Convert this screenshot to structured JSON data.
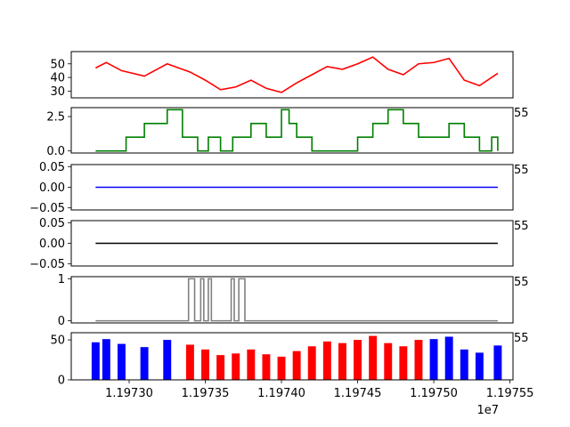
{
  "chart_data": [
    {
      "type": "line",
      "color": "#ff0000",
      "ylim": [
        25,
        59
      ],
      "yticks": [
        30,
        40,
        50
      ],
      "ytick_labels": [
        "30",
        "40",
        "50"
      ],
      "xlim": [
        11972620,
        11975520
      ],
      "x_offset_label": "",
      "series": [
        {
          "color": "#ff0000",
          "x": [
            11972780,
            11972850,
            11972950,
            11973100,
            11973250,
            11973400,
            11973500,
            11973600,
            11973700,
            11973800,
            11973900,
            11974000,
            11974100,
            11974200,
            11974300,
            11974400,
            11974500,
            11974600,
            11974700,
            11974800,
            11974900,
            11975000,
            11975100,
            11975200,
            11975300,
            11975420
          ],
          "values": [
            47,
            51,
            45,
            41,
            50,
            44,
            38,
            31,
            33,
            38,
            32,
            29,
            36,
            42,
            48,
            46,
            50,
            55,
            46,
            42,
            50,
            51,
            54,
            38,
            34,
            43
          ]
        }
      ]
    },
    {
      "type": "line",
      "color": "#008000",
      "ylim": [
        -0.15,
        3.15
      ],
      "yticks": [
        0.0,
        2.5
      ],
      "ytick_labels": [
        "0.0",
        "2.5"
      ],
      "xlim": [
        11972620,
        11975520
      ],
      "x_offset_label": "55",
      "series": [
        {
          "color": "#008000",
          "step": true,
          "x": [
            11972780,
            11972980,
            11973100,
            11973250,
            11973350,
            11973450,
            11973520,
            11973600,
            11973680,
            11973800,
            11973900,
            11974000,
            11974050,
            11974100,
            11974200,
            11974400,
            11974500,
            11974600,
            11974700,
            11974800,
            11974900,
            11975000,
            11975100,
            11975200,
            11975300,
            11975380,
            11975420
          ],
          "values": [
            0,
            1,
            2,
            3,
            1,
            0,
            1,
            0,
            1,
            2,
            1,
            3,
            2,
            1,
            0,
            0,
            1,
            2,
            3,
            2,
            1,
            1,
            2,
            1,
            0,
            1,
            0
          ]
        }
      ]
    },
    {
      "type": "line",
      "color": "#0000ff",
      "ylim": [
        -0.055,
        0.055
      ],
      "yticks": [
        -0.05,
        0.0,
        0.05
      ],
      "ytick_labels": [
        "−0.05",
        "0.00",
        "0.05"
      ],
      "xlim": [
        11972620,
        11975520
      ],
      "x_offset_label": "55",
      "series": [
        {
          "color": "#0000ff",
          "x": [
            11972780,
            11975420
          ],
          "values": [
            0,
            0
          ]
        }
      ]
    },
    {
      "type": "line",
      "color": "#000000",
      "ylim": [
        -0.055,
        0.055
      ],
      "yticks": [
        -0.05,
        0.0,
        0.05
      ],
      "ytick_labels": [
        "−0.05",
        "0.00",
        "0.05"
      ],
      "xlim": [
        11972620,
        11975520
      ],
      "x_offset_label": "55",
      "series": [
        {
          "color": "#000000",
          "x": [
            11972780,
            11975420
          ],
          "values": [
            0,
            0
          ]
        }
      ]
    },
    {
      "type": "line",
      "color": "#808080",
      "ylim": [
        -0.05,
        1.05
      ],
      "yticks": [
        0,
        1
      ],
      "ytick_labels": [
        "0",
        "1"
      ],
      "xlim": [
        11972620,
        11975520
      ],
      "x_offset_label": "55",
      "series": [
        {
          "color": "#808080",
          "step": true,
          "x": [
            11972780,
            11973390,
            11973430,
            11973470,
            11973490,
            11973520,
            11973540,
            11973600,
            11973670,
            11973690,
            11973720,
            11973760,
            11973800,
            11975420
          ],
          "values": [
            0,
            1,
            0,
            1,
            0,
            1,
            0,
            0,
            1,
            0,
            1,
            0,
            0,
            0
          ]
        }
      ]
    },
    {
      "type": "bar",
      "ylim": [
        0,
        59
      ],
      "yticks": [
        0,
        50
      ],
      "ytick_labels": [
        "0",
        "50"
      ],
      "xlim": [
        11972620,
        11975520
      ],
      "x_offset_label": "55",
      "xticks": [
        11973000,
        11973500,
        11974000,
        11974500,
        11975000,
        11975500
      ],
      "xtick_labels": [
        "1.19730",
        "1.19735",
        "1.19740",
        "1.19745",
        "1.19750",
        "1.19755"
      ],
      "x_scale_label": "1e7",
      "color_rule": {
        "low_color": "#0000ff",
        "high_color": "#ff0000",
        "red_from": 11973300,
        "red_to": 11974920
      },
      "x": [
        11972780,
        11972850,
        11972950,
        11973100,
        11973250,
        11973400,
        11973500,
        11973600,
        11973700,
        11973800,
        11973900,
        11974000,
        11974100,
        11974200,
        11974300,
        11974400,
        11974500,
        11974600,
        11974700,
        11974800,
        11974900,
        11975000,
        11975100,
        11975200,
        11975300,
        11975420
      ],
      "values": [
        47,
        51,
        45,
        41,
        50,
        44,
        38,
        31,
        33,
        38,
        32,
        29,
        36,
        42,
        48,
        46,
        50,
        55,
        46,
        42,
        50,
        51,
        54,
        38,
        34,
        43
      ]
    }
  ]
}
